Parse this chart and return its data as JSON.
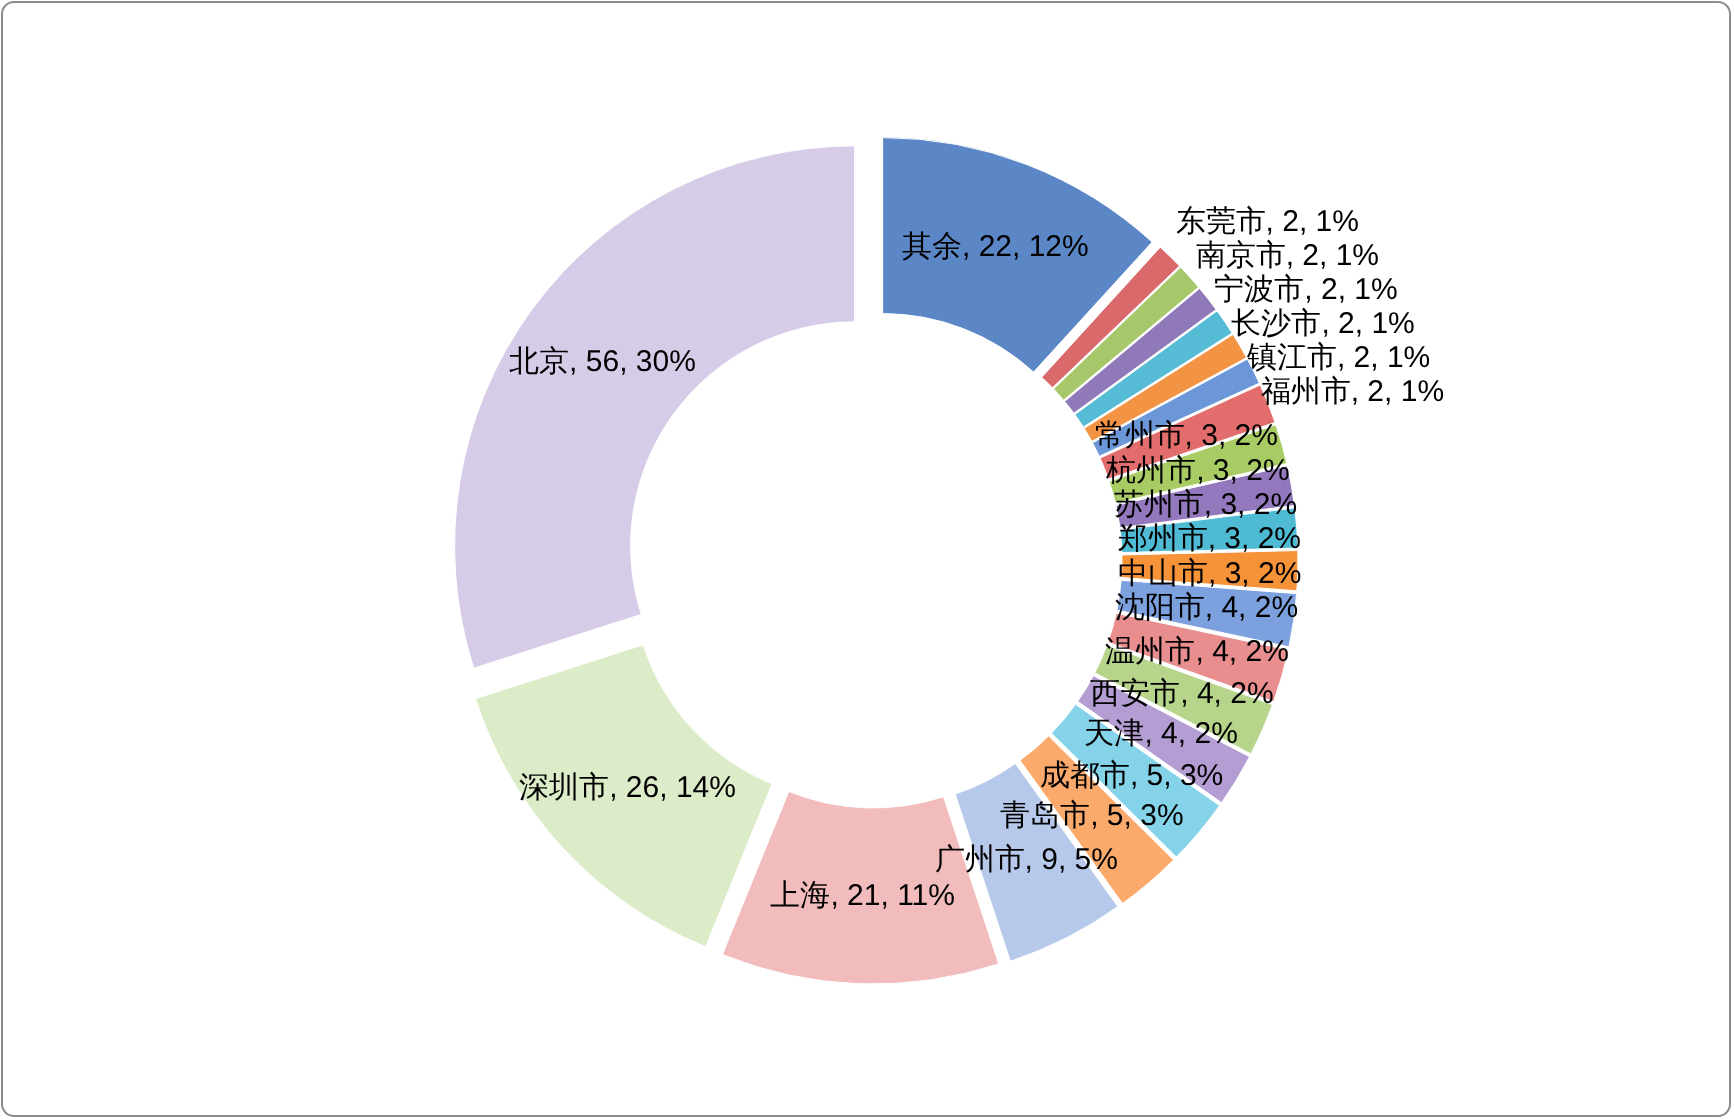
{
  "chart_data": {
    "type": "donut",
    "categories": [
      "其余",
      "东莞市",
      "南京市",
      "宁波市",
      "长沙市",
      "镇江市",
      "福州市",
      "常州市",
      "杭州市",
      "苏州市",
      "郑州市",
      "中山市",
      "沈阳市",
      "温州市",
      "西安市",
      "天津",
      "成都市",
      "青岛市",
      "广州市",
      "上海",
      "深圳市",
      "北京"
    ],
    "values": [
      22,
      2,
      2,
      2,
      2,
      2,
      2,
      3,
      3,
      3,
      3,
      3,
      4,
      4,
      4,
      4,
      5,
      5,
      9,
      21,
      26,
      56
    ],
    "value_labels": [
      "22, 12%",
      "2, 1%",
      "2, 1%",
      "2, 1%",
      "2, 1%",
      "2, 1%",
      "2, 1%",
      "3, 2%",
      "3, 2%",
      "3, 2%",
      "3, 2%",
      "3, 2%",
      "4, 2%",
      "4, 2%",
      "4, 2%",
      "4, 2%",
      "5, 3%",
      "5, 3%",
      "9, 5%",
      "21, 11%",
      "26, 14%",
      "56, 30%"
    ],
    "colors": [
      "#5c87c6",
      "#d9696b",
      "#a6c86a",
      "#9079b8",
      "#56bcd6",
      "#f39445",
      "#6b96d8",
      "#e36c6c",
      "#a8cb63",
      "#9478be",
      "#4fbad4",
      "#f69238",
      "#7da1de",
      "#e88e8e",
      "#b6d58a",
      "#b49dd3",
      "#84d3e8",
      "#fbaa6c",
      "#b7c9ea",
      "#f2bcbc",
      "#ddecc8",
      "#d6cce8"
    ]
  }
}
